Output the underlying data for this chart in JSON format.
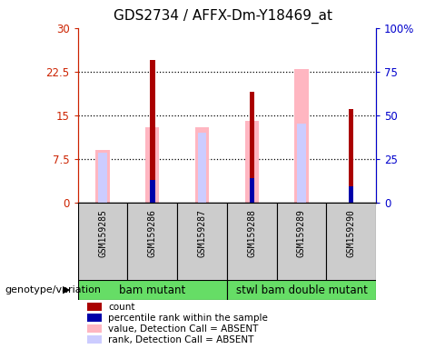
{
  "title": "GDS2734 / AFFX-Dm-Y18469_at",
  "samples": [
    "GSM159285",
    "GSM159286",
    "GSM159287",
    "GSM159288",
    "GSM159289",
    "GSM159290"
  ],
  "genotype_groups": [
    {
      "label": "bam mutant",
      "samples": [
        0,
        1,
        2
      ],
      "color": "#66DD66"
    },
    {
      "label": "stwl bam double mutant",
      "samples": [
        3,
        4,
        5
      ],
      "color": "#66DD66"
    }
  ],
  "count": [
    null,
    24.5,
    null,
    19.0,
    null,
    16.0
  ],
  "percentile_rank": [
    null,
    13.0,
    null,
    14.0,
    null,
    9.0
  ],
  "value_absent": [
    9.0,
    13.0,
    13.0,
    14.0,
    23.0,
    null
  ],
  "rank_absent": [
    8.5,
    null,
    12.0,
    null,
    13.5,
    null
  ],
  "ylim_left": [
    0,
    30
  ],
  "ylim_right": [
    0,
    100
  ],
  "yticks_left": [
    0,
    7.5,
    15,
    22.5,
    30
  ],
  "ytick_labels_left": [
    "0",
    "7.5",
    "15",
    "22.5",
    "30"
  ],
  "yticks_right": [
    0,
    25,
    50,
    75,
    100
  ],
  "ytick_labels_right": [
    "0",
    "25",
    "50",
    "75",
    "100%"
  ],
  "bar_colors": {
    "count": "#AA0000",
    "percentile_rank": "#0000AA",
    "value_absent": "#FFB6C1",
    "rank_absent": "#CCCCFF"
  },
  "legend_items": [
    {
      "color": "#AA0000",
      "label": "count"
    },
    {
      "color": "#0000AA",
      "label": "percentile rank within the sample"
    },
    {
      "color": "#FFB6C1",
      "label": "value, Detection Call = ABSENT"
    },
    {
      "color": "#CCCCFF",
      "label": "rank, Detection Call = ABSENT"
    }
  ],
  "left_axis_color": "#CC2200",
  "right_axis_color": "#0000CC",
  "title_fontsize": 11,
  "tick_fontsize": 8.5,
  "label_fontsize": 8
}
